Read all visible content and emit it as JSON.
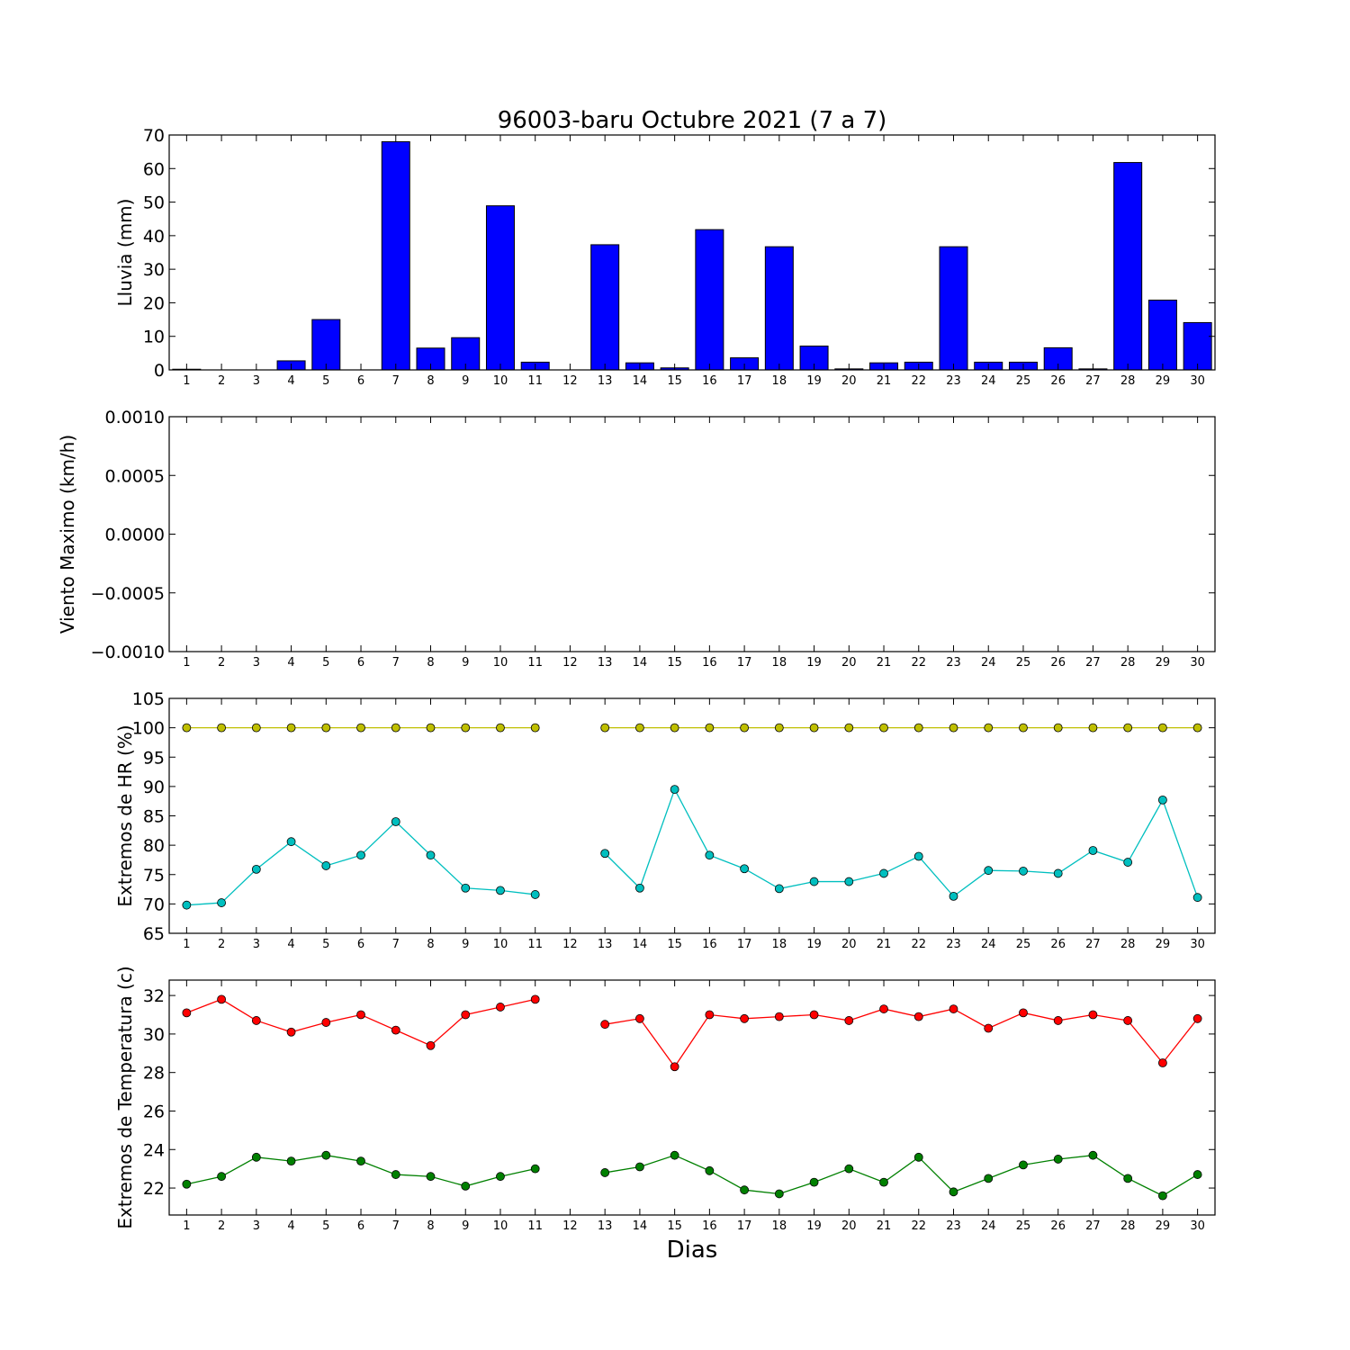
{
  "figure": {
    "title": "96003-baru Octubre 2021  (7 a 7)",
    "xlabel": "Dias"
  },
  "colors": {
    "rain": "#0000ff",
    "hr_max": "#bfbf00",
    "hr_min": "#00bfbf",
    "temp_max": "#ff0000",
    "temp_min": "#008000"
  },
  "chart_data": [
    {
      "type": "bar",
      "ylabel": "Lluvia (mm)",
      "ylim": [
        0,
        70
      ],
      "yticks": [
        0,
        10,
        20,
        30,
        40,
        50,
        60,
        70
      ],
      "ytick_labels": [
        "0",
        "10",
        "20",
        "30",
        "40",
        "50",
        "60",
        "70"
      ],
      "xlim": [
        0.5,
        30.5
      ],
      "x": [
        1,
        2,
        3,
        4,
        5,
        6,
        7,
        8,
        9,
        10,
        11,
        12,
        13,
        14,
        15,
        16,
        17,
        18,
        19,
        20,
        21,
        22,
        23,
        24,
        25,
        26,
        27,
        28,
        29,
        30
      ],
      "series": [
        {
          "values": [
            0.2,
            0,
            0,
            2.7,
            15,
            0,
            68,
            6.5,
            9.6,
            48.9,
            2.3,
            0,
            37.3,
            2.1,
            0.6,
            41.8,
            3.6,
            36.7,
            7.1,
            0.3,
            2.1,
            2.3,
            36.7,
            2.3,
            2.3,
            6.6,
            0.3,
            61.8,
            20.8,
            14.1
          ]
        }
      ]
    },
    {
      "type": "line",
      "ylabel": "Viento Maximo (km/h)",
      "ylim": [
        -0.001,
        0.001
      ],
      "yticks": [
        -0.001,
        -0.0005,
        0,
        0.0005,
        0.001
      ],
      "ytick_labels": [
        "−0.0010",
        "−0.0005",
        "0.0000",
        "0.0005",
        "0.0010"
      ],
      "xlim": [
        0.5,
        30.5
      ],
      "x": [
        1,
        2,
        3,
        4,
        5,
        6,
        7,
        8,
        9,
        10,
        11,
        12,
        13,
        14,
        15,
        16,
        17,
        18,
        19,
        20,
        21,
        22,
        23,
        24,
        25,
        26,
        27,
        28,
        29,
        30
      ],
      "series": []
    },
    {
      "type": "line",
      "ylabel": "Extremos de HR (%)",
      "ylim": [
        65,
        105
      ],
      "yticks": [
        65,
        70,
        75,
        80,
        85,
        90,
        95,
        100,
        105
      ],
      "ytick_labels": [
        "65",
        "70",
        "75",
        "80",
        "85",
        "90",
        "95",
        "100",
        "105"
      ],
      "xlim": [
        0.5,
        30.5
      ],
      "x": [
        1,
        2,
        3,
        4,
        5,
        6,
        7,
        8,
        9,
        10,
        11,
        12,
        13,
        14,
        15,
        16,
        17,
        18,
        19,
        20,
        21,
        22,
        23,
        24,
        25,
        26,
        27,
        28,
        29,
        30
      ],
      "series": [
        {
          "color": "#bfbf00",
          "values": [
            100,
            100,
            100,
            100,
            100,
            100,
            100,
            100,
            100,
            100,
            100,
            null,
            100,
            100,
            100,
            100,
            100,
            100,
            100,
            100,
            100,
            100,
            100,
            100,
            100,
            100,
            100,
            100,
            100,
            100
          ]
        },
        {
          "color": "#00bfbf",
          "values": [
            69.8,
            70.2,
            75.9,
            80.6,
            76.5,
            78.3,
            84,
            78.3,
            72.7,
            72.3,
            71.6,
            null,
            78.6,
            72.7,
            89.5,
            78.3,
            76,
            72.6,
            73.8,
            73.8,
            75.2,
            78.1,
            71.3,
            75.7,
            75.6,
            75.2,
            79.1,
            77.1,
            87.7,
            71.1
          ]
        }
      ]
    },
    {
      "type": "line",
      "ylabel": "Extremos de Temperatura (c)",
      "ylim": [
        20.6,
        32.8
      ],
      "yticks": [
        22,
        24,
        26,
        28,
        30,
        32
      ],
      "ytick_labels": [
        "22",
        "24",
        "26",
        "28",
        "30",
        "32"
      ],
      "xlim": [
        0.5,
        30.5
      ],
      "x": [
        1,
        2,
        3,
        4,
        5,
        6,
        7,
        8,
        9,
        10,
        11,
        12,
        13,
        14,
        15,
        16,
        17,
        18,
        19,
        20,
        21,
        22,
        23,
        24,
        25,
        26,
        27,
        28,
        29,
        30
      ],
      "series": [
        {
          "color": "#ff0000",
          "values": [
            31.1,
            31.8,
            30.7,
            30.1,
            30.6,
            31,
            30.2,
            29.4,
            31,
            31.4,
            31.8,
            null,
            30.5,
            30.8,
            28.3,
            31,
            30.8,
            30.9,
            31,
            30.7,
            31.3,
            30.9,
            31.3,
            30.3,
            31.1,
            30.7,
            31,
            30.7,
            28.5,
            30.8
          ]
        },
        {
          "color": "#008000",
          "values": [
            22.2,
            22.6,
            23.6,
            23.4,
            23.7,
            23.4,
            22.7,
            22.6,
            22.1,
            22.6,
            23,
            null,
            22.8,
            23.1,
            23.7,
            22.9,
            21.9,
            21.7,
            22.3,
            23,
            22.3,
            23.6,
            21.8,
            22.5,
            23.2,
            23.5,
            23.7,
            22.5,
            21.6,
            22.7
          ]
        }
      ]
    }
  ]
}
